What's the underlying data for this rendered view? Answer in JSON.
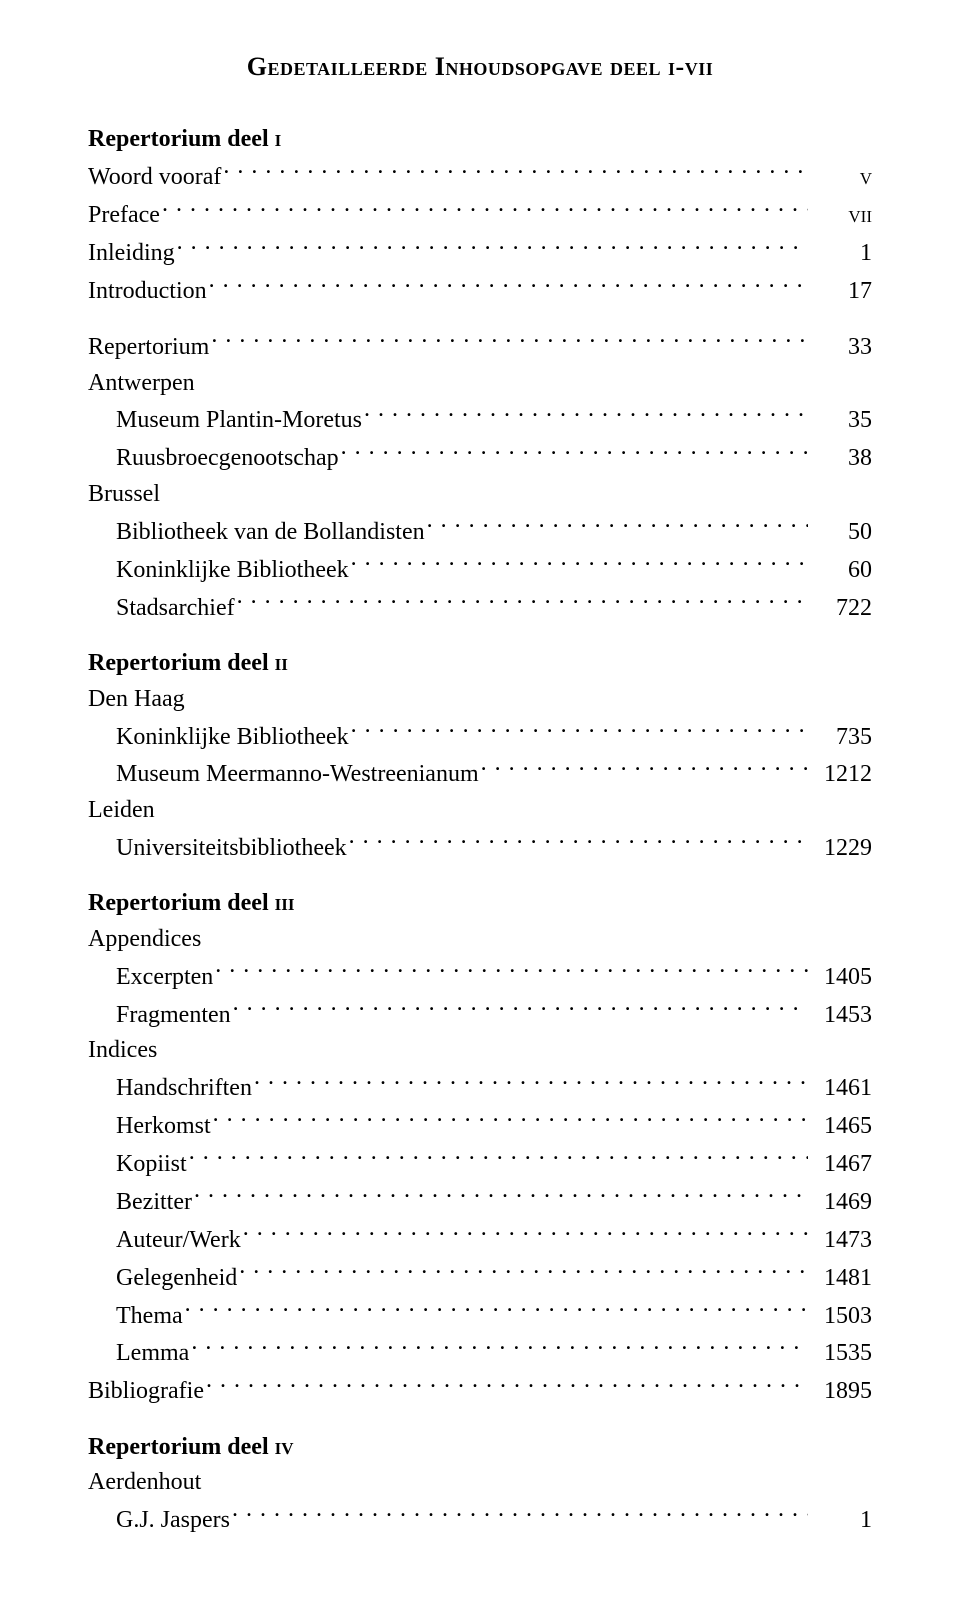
{
  "title": "Gedetailleerde Inhoudsopgave deel i-vii",
  "sections": [
    {
      "heading_prefix": "Repertorium deel ",
      "heading_part": "i",
      "entries": [
        {
          "text": "Woord vooraf",
          "page": "v",
          "indent": 0,
          "page_sc": true
        },
        {
          "text": "Preface",
          "page": "vii",
          "indent": 0,
          "page_sc": true
        },
        {
          "text": "Inleiding",
          "page": "1",
          "indent": 0
        },
        {
          "text": "Introduction",
          "page": "17",
          "indent": 0
        },
        {
          "text": "Repertorium",
          "page": "33",
          "indent": 0,
          "gap_before": true
        },
        {
          "text": "Antwerpen",
          "indent": 0,
          "no_page": true
        },
        {
          "text": "Museum Plantin-Moretus",
          "page": "35",
          "indent": 1
        },
        {
          "text": "Ruusbroecgenootschap",
          "page": "38",
          "indent": 1
        },
        {
          "text": "Brussel",
          "indent": 0,
          "no_page": true
        },
        {
          "text": "Bibliotheek van de Bollandisten",
          "page": "50",
          "indent": 1
        },
        {
          "text": "Koninklijke Bibliotheek",
          "page": "60",
          "indent": 1
        },
        {
          "text": "Stadsarchief",
          "page": "722",
          "indent": 1
        }
      ]
    },
    {
      "heading_prefix": "Repertorium deel ",
      "heading_part": "ii",
      "entries": [
        {
          "text": "Den Haag",
          "indent": 0,
          "no_page": true
        },
        {
          "text": "Koninklijke Bibliotheek",
          "page": "735",
          "indent": 1
        },
        {
          "text": "Museum Meermanno-Westreenianum",
          "page": "1212",
          "indent": 1
        },
        {
          "text": "Leiden",
          "indent": 0,
          "no_page": true
        },
        {
          "text": "Universiteitsbibliotheek",
          "page": "1229",
          "indent": 1
        }
      ]
    },
    {
      "heading_prefix": "Repertorium deel ",
      "heading_part": "iii",
      "entries": [
        {
          "text": "Appendices",
          "indent": 0,
          "no_page": true
        },
        {
          "text": "Excerpten",
          "page": "1405",
          "indent": 1
        },
        {
          "text": "Fragmenten",
          "page": "1453",
          "indent": 1
        },
        {
          "text": "Indices",
          "indent": 0,
          "no_page": true
        },
        {
          "text": "Handschriften",
          "page": "1461",
          "indent": 1
        },
        {
          "text": "Herkomst",
          "page": "1465",
          "indent": 1
        },
        {
          "text": "Kopiist",
          "page": "1467",
          "indent": 1
        },
        {
          "text": "Bezitter",
          "page": "1469",
          "indent": 1
        },
        {
          "text": "Auteur/Werk",
          "page": "1473",
          "indent": 1
        },
        {
          "text": "Gelegenheid",
          "page": "1481",
          "indent": 1
        },
        {
          "text": "Thema",
          "page": "1503",
          "indent": 1
        },
        {
          "text": "Lemma",
          "page": "1535",
          "indent": 1
        },
        {
          "text": "Bibliografie",
          "page": "1895",
          "indent": 0
        }
      ]
    },
    {
      "heading_prefix": "Repertorium deel ",
      "heading_part": "iv",
      "entries": [
        {
          "text": "Aerdenhout",
          "indent": 0,
          "no_page": true
        },
        {
          "text": "G.J. Jaspers",
          "page": "1",
          "indent": 1
        }
      ]
    }
  ]
}
